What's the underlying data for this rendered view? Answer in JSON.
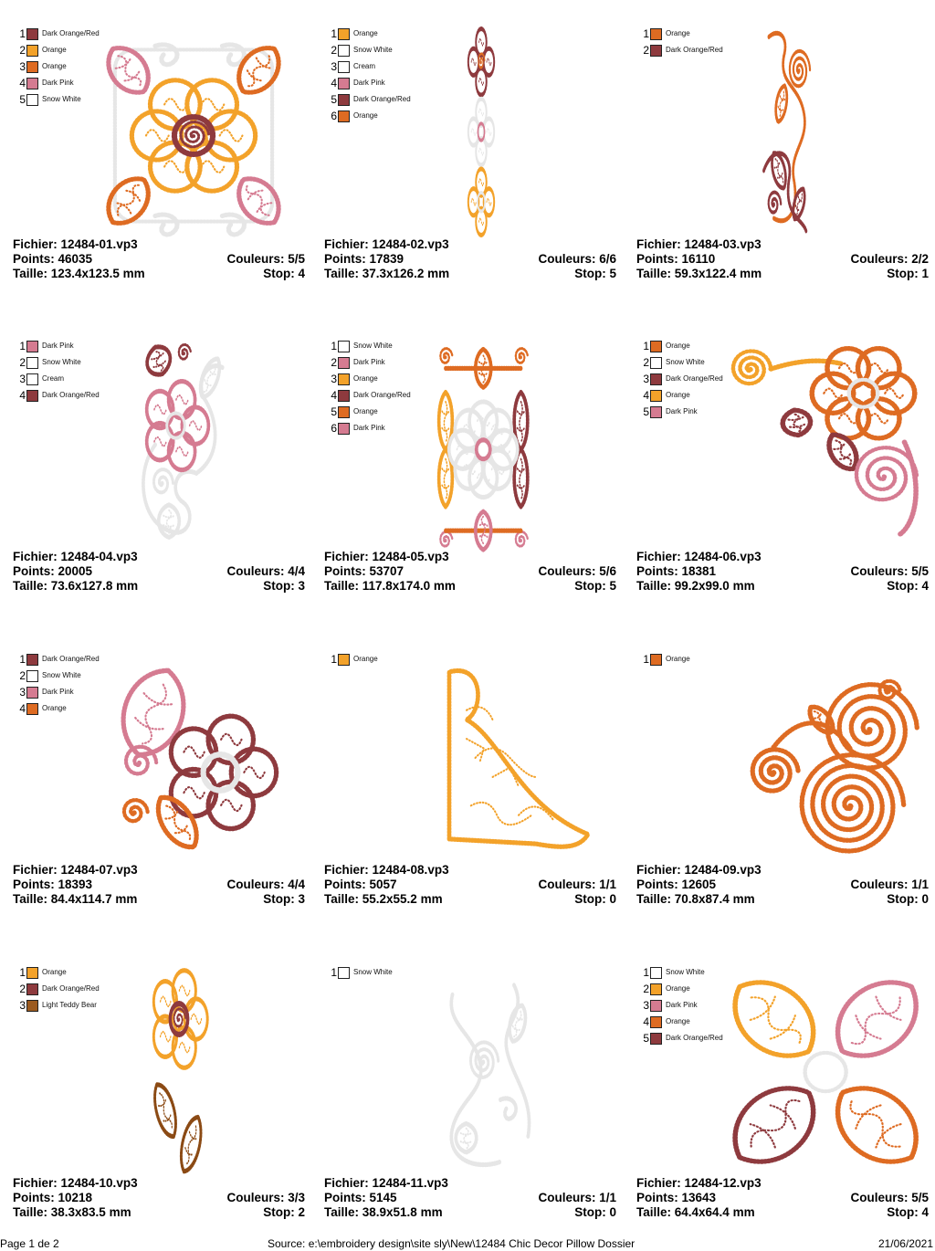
{
  "designs": [
    {
      "legend": [
        {
          "num": "1",
          "name": "Dark Orange/Red",
          "color": "#8e3a3e"
        },
        {
          "num": "2",
          "name": "Orange",
          "color": "#f3a22a"
        },
        {
          "num": "3",
          "name": "Orange",
          "color": "#de6b22"
        },
        {
          "num": "4",
          "name": "Dark Pink",
          "color": "#d57b91"
        },
        {
          "num": "5",
          "name": "Snow White",
          "color": "#ffffff"
        }
      ],
      "file": "Fichier: 12484-01.vp3",
      "points": "Points: 46035",
      "colors": "Couleurs: 5/5",
      "size": "Taille: 123.4x123.5 mm",
      "stop": "Stop: 4",
      "motif": "square-flower"
    },
    {
      "legend": [
        {
          "num": "1",
          "name": "Orange",
          "color": "#f3a22a"
        },
        {
          "num": "2",
          "name": "Snow White",
          "color": "#ffffff"
        },
        {
          "num": "3",
          "name": "Cream",
          "color": "#ffffff"
        },
        {
          "num": "4",
          "name": "Dark Pink",
          "color": "#d57b91"
        },
        {
          "num": "5",
          "name": "Dark Orange/Red",
          "color": "#8e3a3e"
        },
        {
          "num": "6",
          "name": "Orange",
          "color": "#de6b22"
        }
      ],
      "file": "Fichier: 12484-02.vp3",
      "points": "Points: 17839",
      "colors": "Couleurs: 6/6",
      "size": "Taille: 37.3x126.2 mm",
      "stop": "Stop: 5",
      "motif": "three-flowers"
    },
    {
      "legend": [
        {
          "num": "1",
          "name": "Orange",
          "color": "#de6b22"
        },
        {
          "num": "2",
          "name": "Dark Orange/Red",
          "color": "#8e3a3e"
        }
      ],
      "file": "Fichier: 12484-03.vp3",
      "points": "Points: 16110",
      "colors": "Couleurs: 2/2",
      "size": "Taille: 59.3x122.4 mm",
      "stop": "Stop: 1",
      "motif": "scroll-vertical"
    },
    {
      "legend": [
        {
          "num": "1",
          "name": "Dark Pink",
          "color": "#d57b91"
        },
        {
          "num": "2",
          "name": "Snow White",
          "color": "#ffffff"
        },
        {
          "num": "3",
          "name": "Cream",
          "color": "#ffffff"
        },
        {
          "num": "4",
          "name": "Dark Orange/Red",
          "color": "#8e3a3e"
        }
      ],
      "file": "Fichier: 12484-04.vp3",
      "points": "Points: 20005",
      "colors": "Couleurs: 4/4",
      "size": "Taille: 73.6x127.8 mm",
      "stop": "Stop: 3",
      "motif": "flower-white-scroll"
    },
    {
      "legend": [
        {
          "num": "1",
          "name": "Snow White",
          "color": "#ffffff"
        },
        {
          "num": "2",
          "name": "Dark Pink",
          "color": "#d57b91"
        },
        {
          "num": "3",
          "name": "Orange",
          "color": "#f3a22a"
        },
        {
          "num": "4",
          "name": "Dark Orange/Red",
          "color": "#8e3a3e"
        },
        {
          "num": "5",
          "name": "Orange",
          "color": "#de6b22"
        },
        {
          "num": "6",
          "name": "Dark Pink",
          "color": "#d57b91"
        }
      ],
      "file": "Fichier: 12484-05.vp3",
      "points": "Points: 53707",
      "colors": "Couleurs: 5/6",
      "size": "Taille: 117.8x174.0 mm",
      "stop": "Stop: 5",
      "motif": "rect-ornament"
    },
    {
      "legend": [
        {
          "num": "1",
          "name": "Orange",
          "color": "#de6b22"
        },
        {
          "num": "2",
          "name": "Snow White",
          "color": "#ffffff"
        },
        {
          "num": "3",
          "name": "Dark Orange/Red",
          "color": "#8e3a3e"
        },
        {
          "num": "4",
          "name": "Orange",
          "color": "#f3a22a"
        },
        {
          "num": "5",
          "name": "Dark Pink",
          "color": "#d57b91"
        }
      ],
      "file": "Fichier: 12484-06.vp3",
      "points": "Points: 18381",
      "colors": "Couleurs: 5/5",
      "size": "Taille: 99.2x99.0 mm",
      "stop": "Stop: 4",
      "motif": "corner-flower"
    },
    {
      "legend": [
        {
          "num": "1",
          "name": "Dark Orange/Red",
          "color": "#8e3a3e"
        },
        {
          "num": "2",
          "name": "Snow White",
          "color": "#ffffff"
        },
        {
          "num": "3",
          "name": "Dark Pink",
          "color": "#d57b91"
        },
        {
          "num": "4",
          "name": "Orange",
          "color": "#de6b22"
        }
      ],
      "file": "Fichier: 12484-07.vp3",
      "points": "Points: 18393",
      "colors": "Couleurs: 4/4",
      "size": "Taille: 84.4x114.7 mm",
      "stop": "Stop: 3",
      "motif": "leaf-flower"
    },
    {
      "legend": [
        {
          "num": "1",
          "name": "Orange",
          "color": "#f3a22a"
        }
      ],
      "file": "Fichier: 12484-08.vp3",
      "points": "Points: 5057",
      "colors": "Couleurs: 1/1",
      "size": "Taille: 55.2x55.2 mm",
      "stop": "Stop: 0",
      "motif": "triangle-corner"
    },
    {
      "legend": [
        {
          "num": "1",
          "name": "Orange",
          "color": "#de6b22"
        }
      ],
      "file": "Fichier: 12484-09.vp3",
      "points": "Points: 12605",
      "colors": "Couleurs: 1/1",
      "size": "Taille: 70.8x87.4 mm",
      "stop": "Stop: 0",
      "motif": "spirals"
    },
    {
      "legend": [
        {
          "num": "1",
          "name": "Orange",
          "color": "#f3a22a"
        },
        {
          "num": "2",
          "name": "Dark Orange/Red",
          "color": "#8e3a3e"
        },
        {
          "num": "3",
          "name": "Light Teddy Bear",
          "color": "#9b5a1f"
        }
      ],
      "file": "Fichier: 12484-10.vp3",
      "points": "Points: 10218",
      "colors": "Couleurs: 3/3",
      "size": "Taille: 38.3x83.5 mm",
      "stop": "Stop: 2",
      "motif": "flower-leaves"
    },
    {
      "legend": [
        {
          "num": "1",
          "name": "Snow White",
          "color": "#ffffff"
        }
      ],
      "file": "Fichier: 12484-11.vp3",
      "points": "Points: 5145",
      "colors": "Couleurs: 1/1",
      "size": "Taille: 38.9x51.8 mm",
      "stop": "Stop: 0",
      "motif": "white-scroll"
    },
    {
      "legend": [
        {
          "num": "1",
          "name": "Snow White",
          "color": "#ffffff"
        },
        {
          "num": "2",
          "name": "Orange",
          "color": "#f3a22a"
        },
        {
          "num": "3",
          "name": "Dark Pink",
          "color": "#d57b91"
        },
        {
          "num": "4",
          "name": "Orange",
          "color": "#de6b22"
        },
        {
          "num": "5",
          "name": "Dark Orange/Red",
          "color": "#8e3a3e"
        }
      ],
      "file": "Fichier: 12484-12.vp3",
      "points": "Points: 13643",
      "colors": "Couleurs: 5/5",
      "size": "Taille: 64.4x64.4 mm",
      "stop": "Stop: 4",
      "motif": "four-leaves"
    }
  ],
  "footer": {
    "page": "Page 1 de 2",
    "source": "Source: e:\\embroidery design\\site sly\\New\\12484 Chic Decor Pillow Dossier",
    "date": "21/06/2021"
  }
}
